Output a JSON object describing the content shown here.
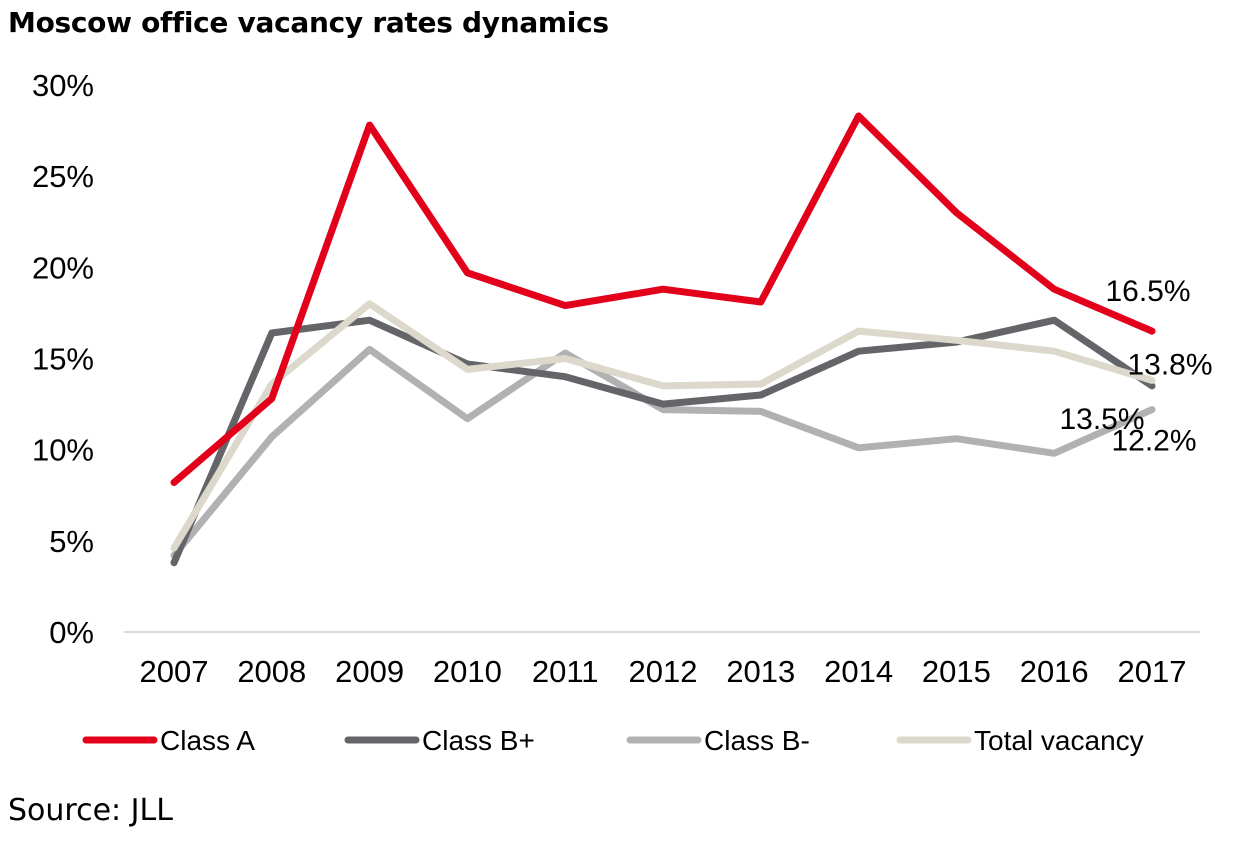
{
  "title": "Moscow office vacancy rates dynamics",
  "source": "Source: JLL",
  "chart_data": {
    "type": "line",
    "title": "Moscow office vacancy rates dynamics",
    "xlabel": "",
    "ylabel": "",
    "x": [
      "2007",
      "2008",
      "2009",
      "2010",
      "2011",
      "2012",
      "2013",
      "2014",
      "2015",
      "2016",
      "2017"
    ],
    "ylim": [
      0,
      30
    ],
    "yticks": [
      0,
      5,
      10,
      15,
      20,
      25,
      30
    ],
    "ytick_labels": [
      "0%",
      "5%",
      "10%",
      "15%",
      "20%",
      "25%",
      "30%"
    ],
    "grid": false,
    "legend_position": "bottom",
    "series": [
      {
        "name": "Class A",
        "color": "#e2001a",
        "values": [
          8.2,
          12.8,
          27.8,
          19.7,
          17.9,
          18.8,
          18.1,
          28.3,
          23.0,
          18.8,
          16.5
        ]
      },
      {
        "name": "Class B+",
        "color": "#646569",
        "values": [
          3.8,
          16.4,
          17.1,
          14.7,
          14.0,
          12.5,
          13.0,
          15.4,
          15.9,
          17.1,
          13.5
        ]
      },
      {
        "name": "Class B-",
        "color": "#b1b1b3",
        "values": [
          4.2,
          10.7,
          15.5,
          11.7,
          15.3,
          12.2,
          12.1,
          10.1,
          10.6,
          9.8,
          12.2
        ]
      },
      {
        "name": "Total vacancy",
        "color": "#dcd8cc",
        "values": [
          4.6,
          13.6,
          18.0,
          14.4,
          15.0,
          13.5,
          13.6,
          16.5,
          16.0,
          15.4,
          13.8
        ]
      }
    ],
    "data_labels": [
      {
        "series": "Class A",
        "x": "2017",
        "text": "16.5%"
      },
      {
        "series": "Total vacancy",
        "x": "2017",
        "text": "13.8%"
      },
      {
        "series": "Class B+",
        "x": "2017",
        "text": "13.5%"
      },
      {
        "series": "Class B-",
        "x": "2017",
        "text": "12.2%"
      }
    ]
  }
}
